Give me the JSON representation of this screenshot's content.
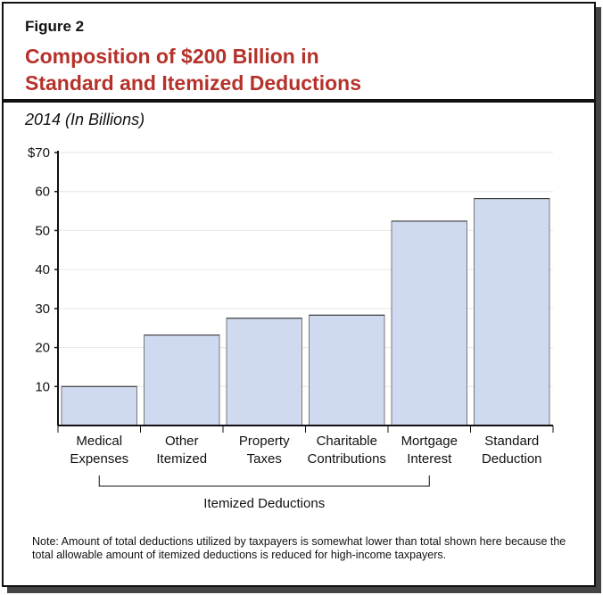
{
  "figure_label": "Figure 2",
  "title_lines": [
    "Composition of $200 Billion in",
    "Standard and Itemized Deductions"
  ],
  "subtitle": "2014 (In Billions)",
  "note": "Note: Amount of total deductions utilized by taxpayers is somewhat lower than total shown here because the total allowable amount of itemized deductions is reduced for high-income taxpayers.",
  "chart_data": {
    "type": "bar",
    "categories": [
      [
        "Medical",
        "Expenses"
      ],
      [
        "Other",
        "Itemized"
      ],
      [
        "Property",
        "Taxes"
      ],
      [
        "Charitable",
        "Contributions"
      ],
      [
        "Mortgage",
        "Interest"
      ],
      [
        "Standard",
        "Deduction"
      ]
    ],
    "values": [
      10,
      23.2,
      27.5,
      28.3,
      52.4,
      58.2
    ],
    "ylim": [
      0,
      70
    ],
    "yticks": [
      10,
      20,
      30,
      40,
      50,
      60,
      70
    ],
    "ytick_labels": [
      "10",
      "20",
      "30",
      "40",
      "50",
      "60",
      "$70"
    ],
    "grid": true,
    "bar_color": "#cfd9f0",
    "group_bracket": {
      "label": "Itemized Deductions",
      "from_category": 0,
      "to_category": 4
    }
  }
}
